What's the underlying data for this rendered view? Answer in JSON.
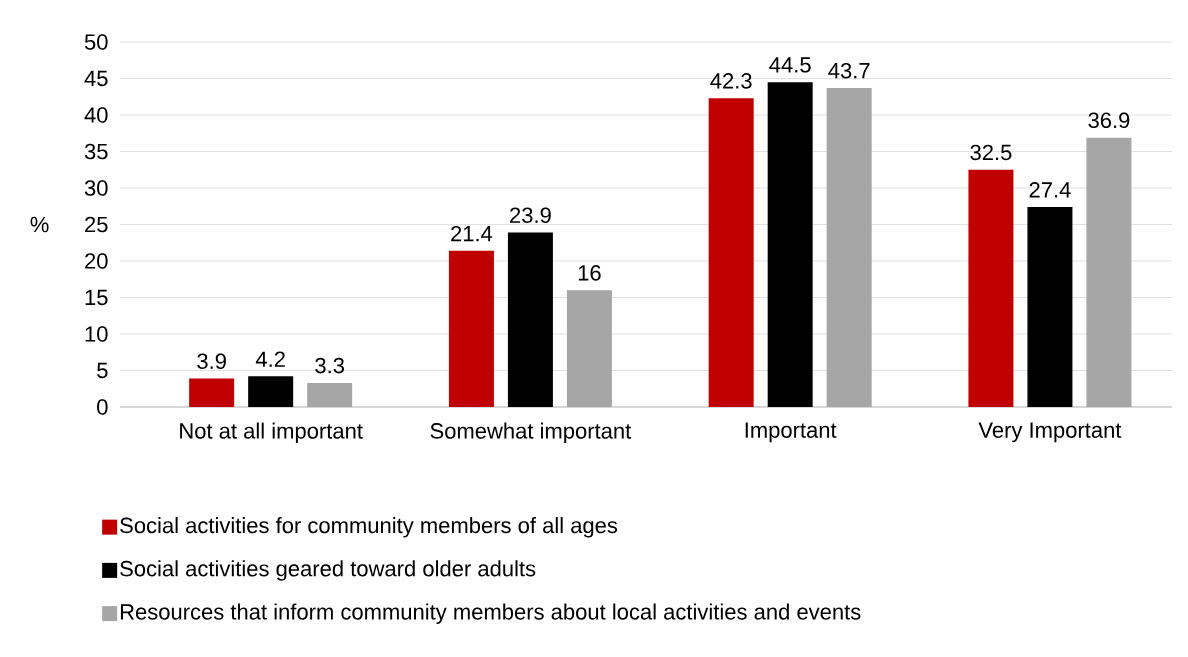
{
  "chart_data": {
    "type": "bar",
    "ylabel": "%",
    "categories": [
      "Not at all important",
      "Somewhat important",
      "Important",
      "Very Important"
    ],
    "series": [
      {
        "name": "Social activities for community members of all ages",
        "color": "#c00000",
        "values": [
          3.9,
          21.4,
          42.3,
          32.5
        ]
      },
      {
        "name": "Social activities geared toward older adults",
        "color": "#000000",
        "values": [
          4.2,
          23.9,
          44.5,
          27.4
        ]
      },
      {
        "name": "Resources that inform community members about local activities and events",
        "color": "#a6a6a6",
        "values": [
          3.3,
          16,
          43.7,
          36.9
        ]
      }
    ],
    "ylim": [
      0,
      50
    ],
    "yticks": [
      0,
      5,
      10,
      15,
      20,
      25,
      30,
      35,
      40,
      45,
      50
    ],
    "grid": "y",
    "legend": "bottom",
    "data_labels": true
  }
}
